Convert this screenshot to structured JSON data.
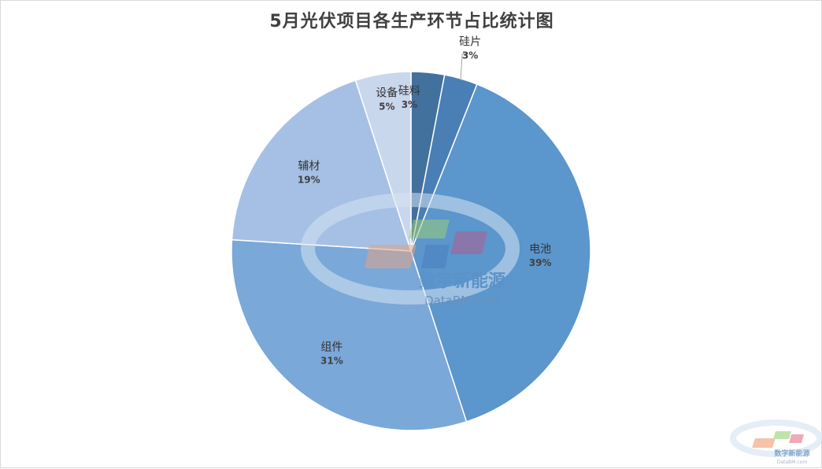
{
  "chart_data": {
    "type": "pie",
    "title": "5月光伏项目各生产环节占比统计图",
    "categories": [
      "硅料",
      "硅片",
      "电池",
      "组件",
      "辅材",
      "设备"
    ],
    "values": [
      3,
      3,
      39,
      31,
      19,
      5
    ],
    "percent_labels": [
      "3%",
      "3%",
      "39%",
      "31%",
      "19%",
      "5%"
    ],
    "colors": [
      "#41719c",
      "#4a7fb5",
      "#5b96cc",
      "#7aa8d8",
      "#a5c0e4",
      "#c9d7ed"
    ],
    "legend": "none",
    "start_angle_deg": 0,
    "direction": "clockwise"
  },
  "watermark": {
    "brand_cn": "数字新能源",
    "brand_en": "DataBM.com"
  }
}
